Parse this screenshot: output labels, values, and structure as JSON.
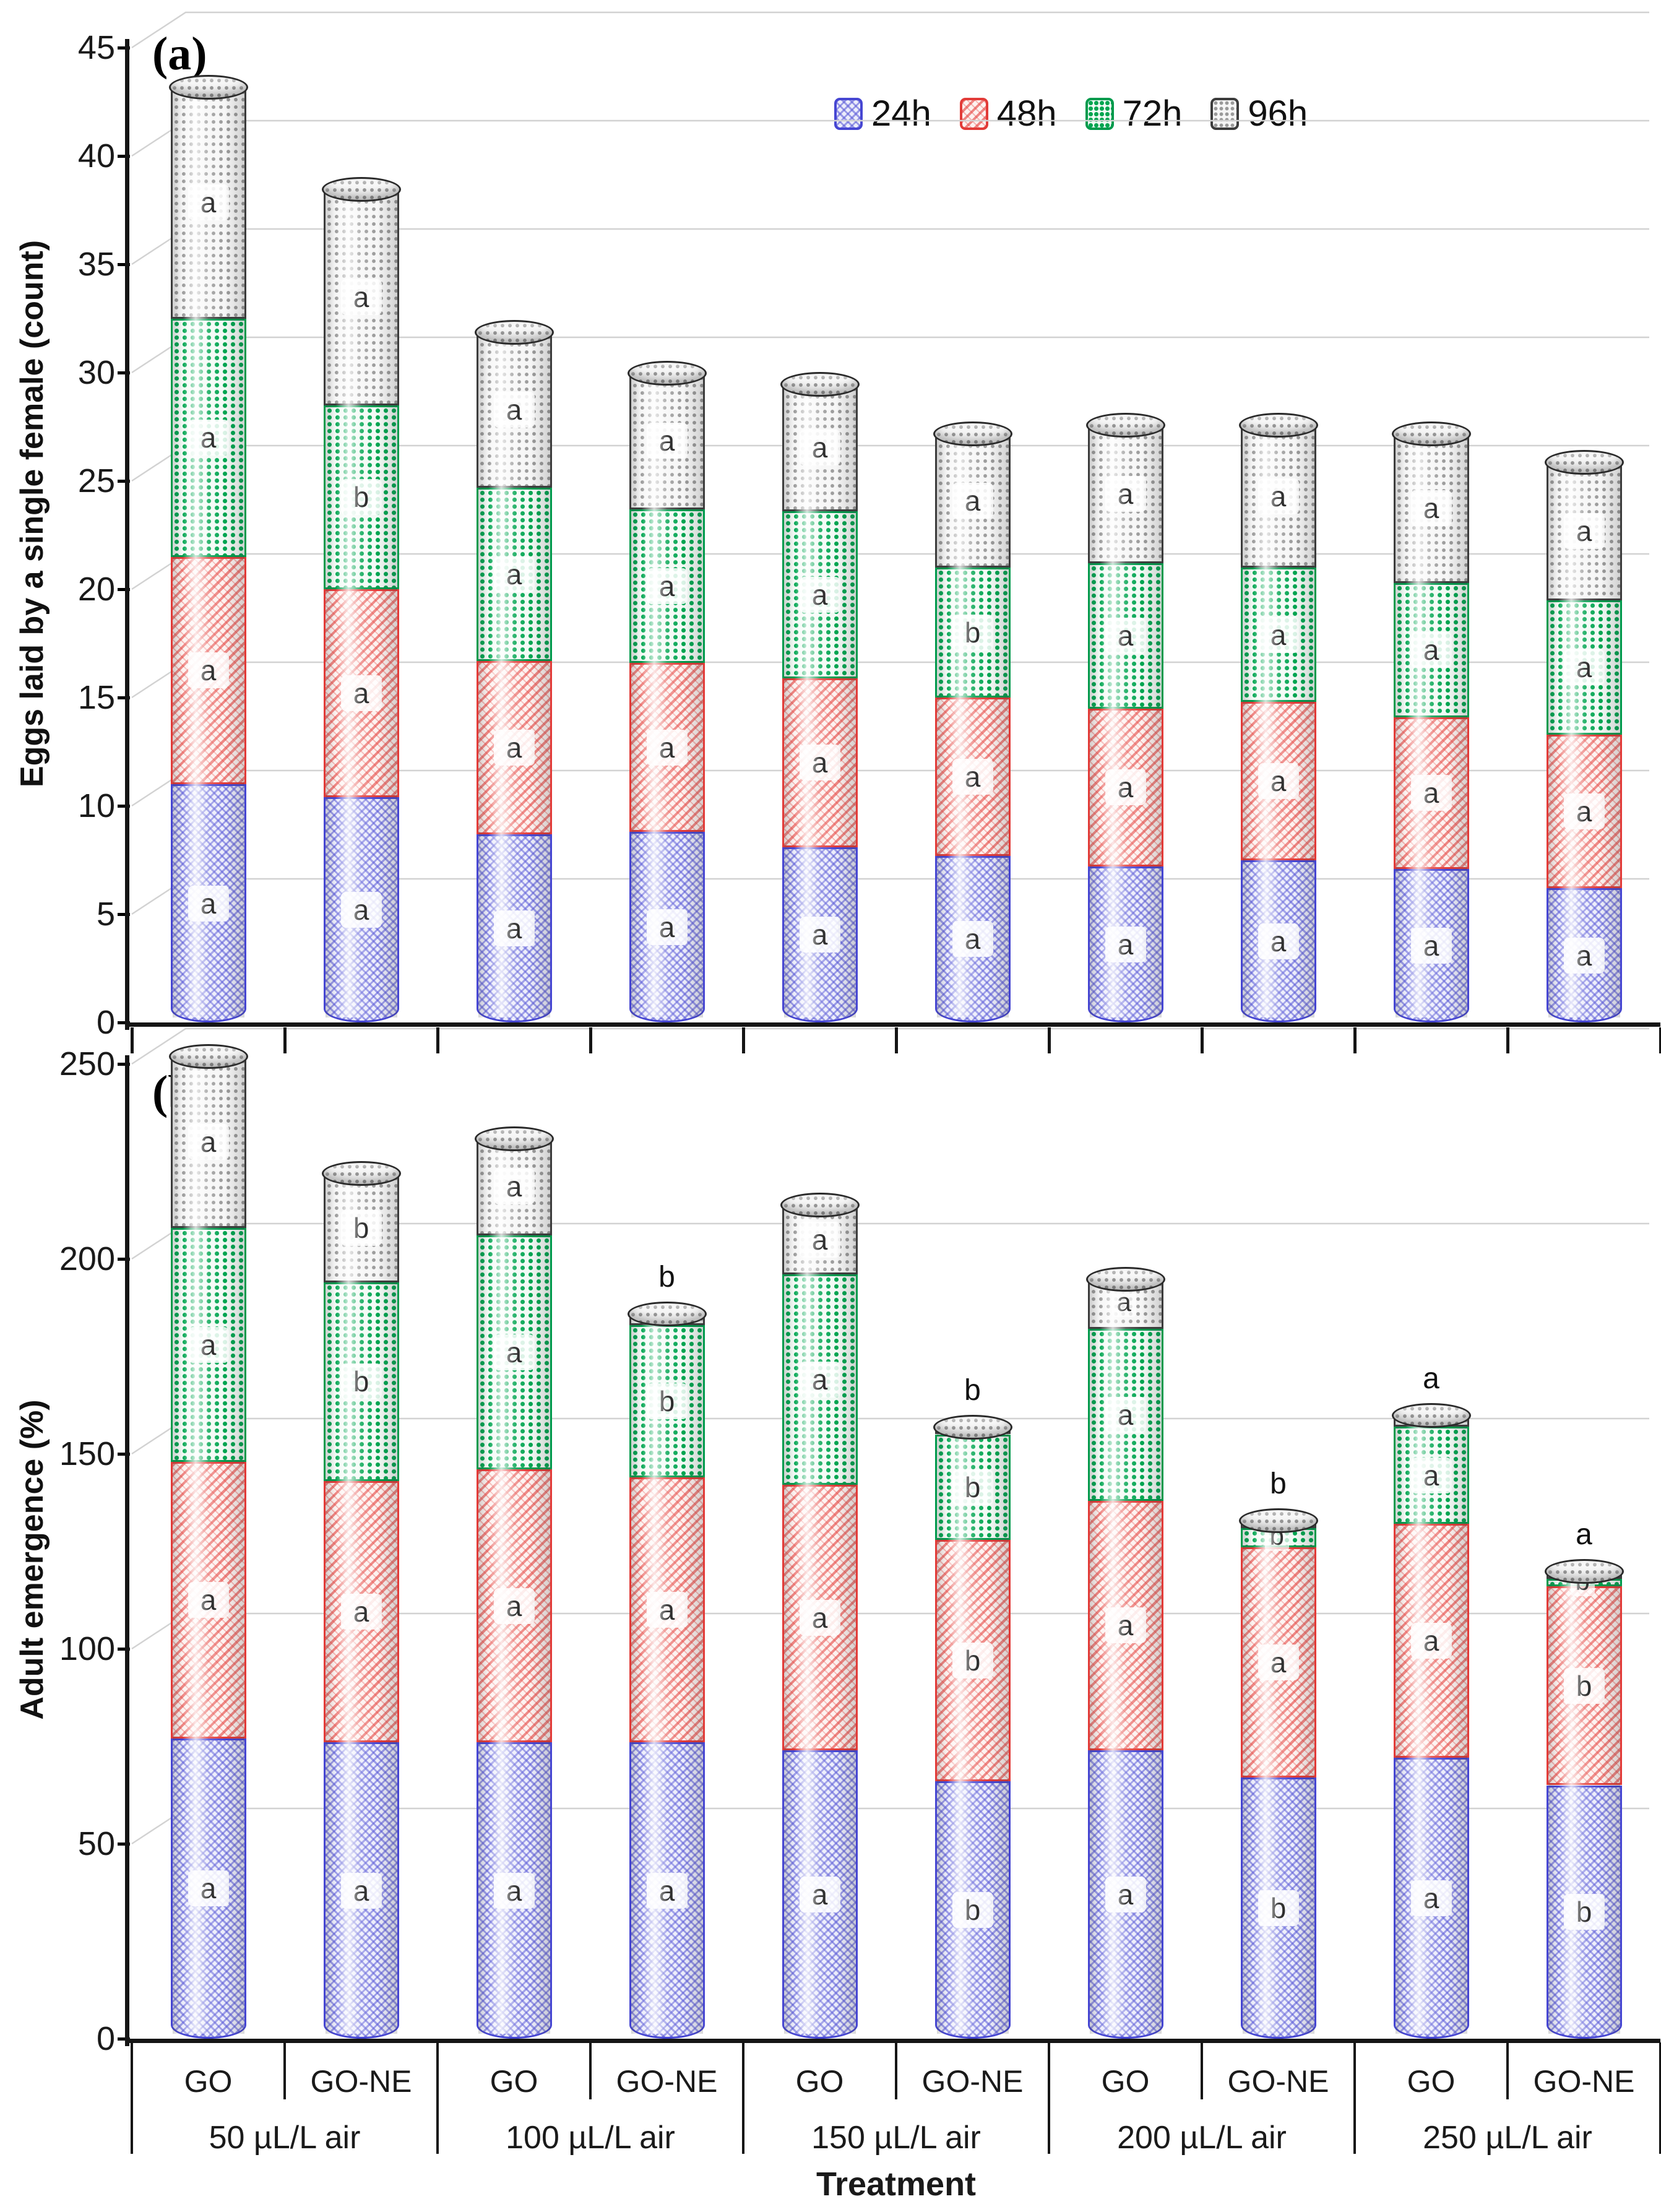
{
  "figure": {
    "background": "#ffffff",
    "panels": [
      {
        "id": "a",
        "label": "(a)",
        "y_title": "Eggs laid by a single female (count)",
        "y_ticks": [
          "0",
          "5",
          "10",
          "15",
          "20",
          "25",
          "30",
          "35",
          "40",
          "45"
        ],
        "ylim": [
          0,
          45
        ]
      },
      {
        "id": "b",
        "label": "(b)",
        "y_title": "Adult emergence (%)",
        "y_ticks": [
          "0",
          "50",
          "100",
          "150",
          "200",
          "250"
        ],
        "ylim": [
          0,
          250
        ]
      }
    ],
    "legend": [
      {
        "label": "24h",
        "color": "#4646d2",
        "pattern": "blue-crosshatch"
      },
      {
        "label": "48h",
        "color": "#e23b38",
        "pattern": "red-diagonal-hatch"
      },
      {
        "label": "72h",
        "color": "#009a4c",
        "pattern": "green-dots"
      },
      {
        "label": "96h",
        "color": "#6e6e6e",
        "pattern": "gray-dots"
      }
    ],
    "x_axis": {
      "title": "Treatment",
      "treatments": [
        "GO",
        "GO-NE"
      ],
      "groups": [
        "50 µL/L air",
        "100 µL/L air",
        "150 µL/L air",
        "200 µL/L air",
        "250 µL/L air"
      ]
    }
  },
  "chart_data": [
    {
      "panel": "(a)",
      "type": "bar",
      "stacked": true,
      "ylabel": "Eggs laid by a single female (count)",
      "ylim": [
        0,
        45
      ],
      "ytick_step": 5,
      "grid": true,
      "legend_position": "top-center",
      "categories": [
        {
          "group": "50 µL/L air",
          "treatment": "GO"
        },
        {
          "group": "50 µL/L air",
          "treatment": "GO-NE"
        },
        {
          "group": "100 µL/L air",
          "treatment": "GO"
        },
        {
          "group": "100 µL/L air",
          "treatment": "GO-NE"
        },
        {
          "group": "150 µL/L air",
          "treatment": "GO"
        },
        {
          "group": "150 µL/L air",
          "treatment": "GO-NE"
        },
        {
          "group": "200 µL/L air",
          "treatment": "GO"
        },
        {
          "group": "200 µL/L air",
          "treatment": "GO-NE"
        },
        {
          "group": "250 µL/L air",
          "treatment": "GO"
        },
        {
          "group": "250 µL/L air",
          "treatment": "GO-NE"
        }
      ],
      "series": [
        {
          "name": "24h",
          "values": [
            11.0,
            10.4,
            8.7,
            8.8,
            8.1,
            7.7,
            7.2,
            7.5,
            7.1,
            6.2
          ],
          "letters": [
            "a",
            "a",
            "a",
            "a",
            "a",
            "a",
            "a",
            "a",
            "a",
            "a"
          ]
        },
        {
          "name": "48h",
          "values": [
            10.5,
            9.6,
            8.0,
            7.8,
            7.8,
            7.3,
            7.3,
            7.3,
            7.0,
            7.1
          ],
          "letters": [
            "a",
            "a",
            "a",
            "a",
            "a",
            "a",
            "a",
            "a",
            "a",
            "a"
          ]
        },
        {
          "name": "72h",
          "values": [
            11.0,
            8.5,
            8.0,
            7.1,
            7.7,
            6.0,
            6.7,
            6.2,
            6.2,
            6.2
          ],
          "letters": [
            "a",
            "b",
            "a",
            "a",
            "a",
            "b",
            "a",
            "a",
            "a",
            "a"
          ]
        },
        {
          "name": "96h",
          "values": [
            10.7,
            10.0,
            7.2,
            6.3,
            5.9,
            6.2,
            6.4,
            6.6,
            6.9,
            6.4
          ],
          "letters": [
            "a",
            "a",
            "a",
            "a",
            "a",
            "a",
            "a",
            "a",
            "a",
            "a"
          ]
        }
      ],
      "above_letters": [
        [],
        [],
        [],
        [],
        [],
        [],
        [],
        [],
        [],
        []
      ]
    },
    {
      "panel": "(b)",
      "type": "bar",
      "stacked": true,
      "ylabel": "Adult emergence (%)",
      "ylim": [
        0,
        250
      ],
      "ytick_step": 50,
      "grid": true,
      "categories": [
        {
          "group": "50 µL/L air",
          "treatment": "GO"
        },
        {
          "group": "50 µL/L air",
          "treatment": "GO-NE"
        },
        {
          "group": "100 µL/L air",
          "treatment": "GO"
        },
        {
          "group": "100 µL/L air",
          "treatment": "GO-NE"
        },
        {
          "group": "150 µL/L air",
          "treatment": "GO"
        },
        {
          "group": "150 µL/L air",
          "treatment": "GO-NE"
        },
        {
          "group": "200 µL/L air",
          "treatment": "GO"
        },
        {
          "group": "200 µL/L air",
          "treatment": "GO-NE"
        },
        {
          "group": "250 µL/L air",
          "treatment": "GO"
        },
        {
          "group": "250 µL/L air",
          "treatment": "GO-NE"
        }
      ],
      "series": [
        {
          "name": "24h",
          "values": [
            77,
            76,
            76,
            76,
            74,
            66,
            74,
            67,
            72,
            65
          ],
          "letters": [
            "a",
            "a",
            "a",
            "a",
            "a",
            "b",
            "a",
            "b",
            "a",
            "b"
          ]
        },
        {
          "name": "48h",
          "values": [
            71,
            67,
            70,
            68,
            68,
            62,
            64,
            59,
            60,
            51
          ],
          "letters": [
            "a",
            "a",
            "a",
            "a",
            "a",
            "b",
            "a",
            "a",
            "a",
            "b"
          ]
        },
        {
          "name": "72h",
          "values": [
            60,
            51,
            60,
            39,
            54,
            27,
            44,
            5,
            25,
            2
          ],
          "letters": [
            "a",
            "b",
            "a",
            "b",
            "a",
            "b",
            "a",
            "b",
            "a",
            "b"
          ]
        },
        {
          "name": "96h",
          "values": [
            44,
            28,
            25,
            3,
            18,
            2,
            13,
            2,
            3,
            2
          ],
          "letters": [
            "a",
            "b",
            "a",
            null,
            "a",
            null,
            "a",
            null,
            null,
            null
          ]
        }
      ],
      "above_letters": [
        [],
        [],
        [],
        [
          "b"
        ],
        [],
        [
          "b"
        ],
        [],
        [
          "b"
        ],
        [
          "a"
        ],
        [
          "a"
        ]
      ]
    }
  ]
}
